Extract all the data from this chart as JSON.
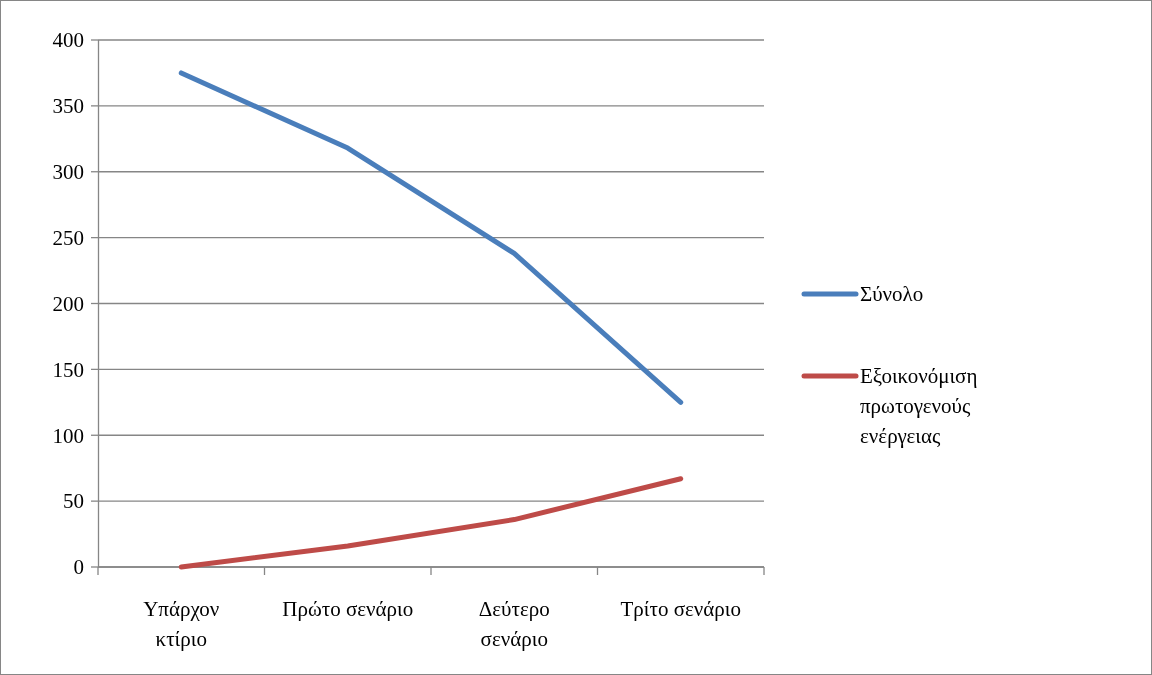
{
  "chart_data": {
    "type": "line",
    "categories": [
      "Υπάρχον κτίριο",
      "Πρώτο σενάριο",
      "Δεύτερο σενάριο",
      "Τρίτο σενάριο"
    ],
    "series": [
      {
        "name": "Σύνολο",
        "color": "#4a7ebb",
        "values": [
          375,
          318,
          238,
          125
        ]
      },
      {
        "name": "Εξοικονόμιση πρωτογενούς ενέργειας",
        "color": "#be4b48",
        "values": [
          0,
          16,
          36,
          67
        ]
      }
    ],
    "ylim": [
      0,
      400
    ],
    "yticks": [
      0,
      50,
      100,
      150,
      200,
      250,
      300,
      350,
      400
    ],
    "grid": "y",
    "legend": "right",
    "marker": "none",
    "line_style": "solid"
  }
}
